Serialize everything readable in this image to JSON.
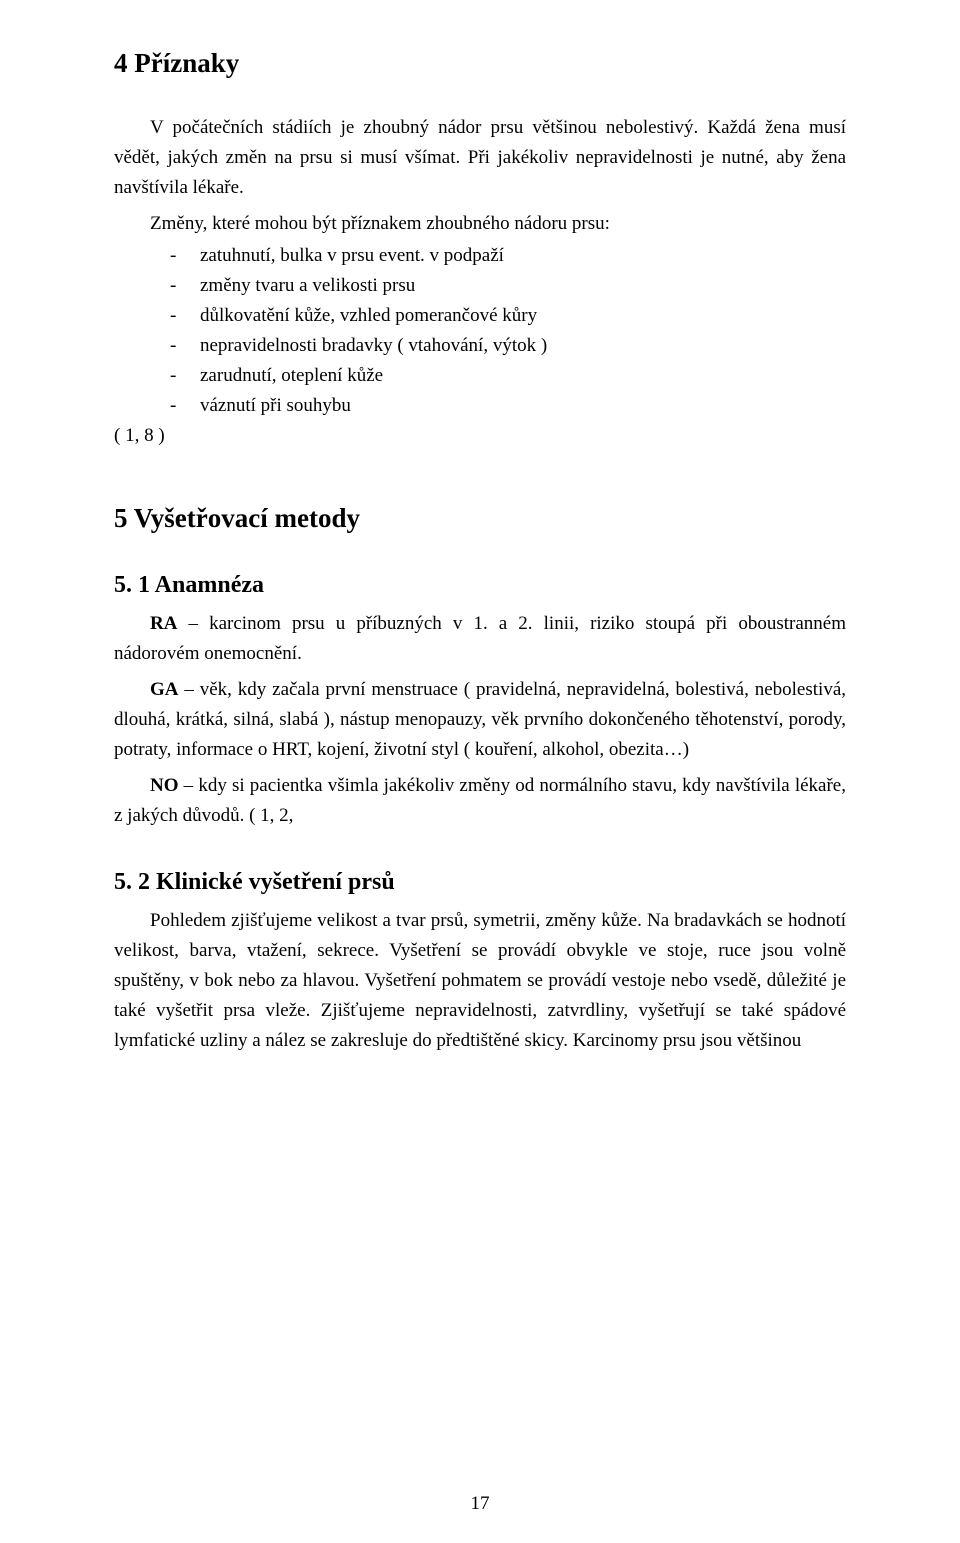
{
  "page": {
    "number": "17",
    "background": "#ffffff",
    "text_color": "#000000",
    "font_family": "Times New Roman",
    "body_font_size_pt": 14,
    "h1_font_size_pt": 20,
    "h2_font_size_pt": 18
  },
  "section4": {
    "heading": "4 Příznaky",
    "para1": "V počátečních stádiích je zhoubný nádor prsu většinou nebolestivý. Každá žena musí vědět, jakých změn na prsu si musí všímat. Při jakékoliv nepravidelnosti je nutné, aby žena navštívila lékaře.",
    "list_intro": "Změny, které mohou být příznakem zhoubného nádoru prsu:",
    "items": [
      "zatuhnutí, bulka v prsu event. v podpaží",
      "změny tvaru a velikosti prsu",
      "důlkovatění kůže, vzhled pomerančové kůry",
      "nepravidelnosti bradavky ( vtahování, výtok )",
      "zarudnutí, oteplení kůže",
      "váznutí při souhybu"
    ],
    "ref": "( 1, 8 )"
  },
  "section5": {
    "heading": "5 Vyšetřovací metody",
    "sub1": {
      "heading": "5. 1 Anamnéza",
      "ra_label": "RA",
      "ra_text": " – karcinom prsu u příbuzných v 1. a 2. linii, riziko stoupá při oboustranném nádorovém onemocnění.",
      "ga_label": "GA",
      "ga_text": " – věk, kdy začala první menstruace ( pravidelná, nepravidelná, bolestivá, nebolestivá, dlouhá, krátká, silná, slabá ), nástup menopauzy, věk prvního dokončeného těhotenství, porody, potraty, informace o HRT, kojení, životní styl ( kouření, alkohol, obezita…)",
      "no_label": "NO",
      "no_text": " – kdy si pacientka všimla jakékoliv změny od normálního stavu, kdy navštívila lékaře, z jakých důvodů. ( 1, 2,"
    },
    "sub2": {
      "heading": "5. 2 Klinické vyšetření prsů",
      "para": "Pohledem zjišťujeme velikost a tvar prsů, symetrii, změny kůže. Na bradavkách se hodnotí velikost, barva, vtažení, sekrece. Vyšetření se provádí obvykle ve stoje, ruce jsou volně spuštěny, v bok nebo za hlavou. Vyšetření pohmatem se provádí vestoje nebo vsedě, důležité je také vyšetřit prsa vleže. Zjišťujeme nepravidelnosti, zatvrdliny, vyšetřují se také spádové lymfatické uzliny a nález se zakresluje do předtištěné skicy. Karcinomy prsu jsou většinou"
    }
  }
}
